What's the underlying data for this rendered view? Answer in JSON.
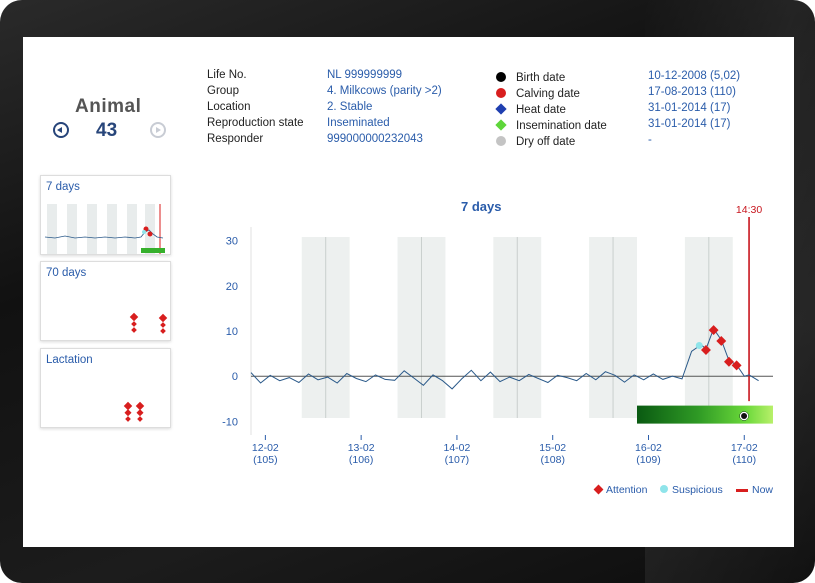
{
  "animal": {
    "title": "Animal",
    "number": "43"
  },
  "info_left": [
    {
      "label": "Life No.",
      "value": "NL 999999999"
    },
    {
      "label": "Group",
      "value": "4. Milkcows (parity >2)"
    },
    {
      "label": "Location",
      "value": "2. Stable"
    },
    {
      "label": "Reproduction state",
      "value": "Inseminated"
    },
    {
      "label": "Responder",
      "value": "999000000232043"
    }
  ],
  "info_right": [
    {
      "label": "Birth date",
      "value": "10-12-2008 (5,02)",
      "color": "#000000",
      "marker": "dot"
    },
    {
      "label": "Calving date",
      "value": "17-08-2013 (110)",
      "color": "#d81e1e",
      "marker": "dot"
    },
    {
      "label": "Heat date",
      "value": "31-01-2014 (17)",
      "color": "#1f3fb0",
      "marker": "diamond"
    },
    {
      "label": "Insemination date",
      "value": "31-01-2014 (17)",
      "color": "#5ed63a",
      "marker": "diamond"
    },
    {
      "label": "Dry off date",
      "value": "-",
      "color": "#c4c4c4",
      "marker": "dot"
    }
  ],
  "thumbnails": [
    {
      "label": "7 days"
    },
    {
      "label": "70 days"
    },
    {
      "label": "Lactation"
    }
  ],
  "chart_legend": {
    "attention": "Attention",
    "suspicious": "Suspicious",
    "now": "Now"
  },
  "now_label": "14:30",
  "chart_data": {
    "type": "line",
    "title": "7 days",
    "xlabel": "",
    "ylabel": "",
    "ylim": [
      -13,
      33
    ],
    "yticks": [
      30,
      20,
      10,
      0,
      -10
    ],
    "x_ticks": [
      {
        "date": "12-02",
        "day": "(105)",
        "x": 0
      },
      {
        "date": "13-02",
        "day": "(106)",
        "x": 1
      },
      {
        "date": "14-02",
        "day": "(107)",
        "x": 2
      },
      {
        "date": "15-02",
        "day": "(108)",
        "x": 3
      },
      {
        "date": "16-02",
        "day": "(109)",
        "x": 4
      },
      {
        "date": "17-02",
        "day": "(110)",
        "x": 5
      }
    ],
    "xlim": [
      -0.15,
      5.3
    ],
    "now_x": 5.05,
    "shaded_bands": [
      [
        0.38,
        0.88
      ],
      [
        1.38,
        1.88
      ],
      [
        2.38,
        2.88
      ],
      [
        3.38,
        3.88
      ],
      [
        4.38,
        4.88
      ]
    ],
    "series": [
      {
        "values": [
          [
            -0.15,
            0.8
          ],
          [
            -0.05,
            -1.5
          ],
          [
            0.05,
            0.2
          ],
          [
            0.15,
            -1.0
          ],
          [
            0.25,
            -0.3
          ],
          [
            0.35,
            -1.4
          ],
          [
            0.45,
            0.5
          ],
          [
            0.55,
            -0.8
          ],
          [
            0.65,
            -0.2
          ],
          [
            0.75,
            -1.5
          ],
          [
            0.85,
            0.6
          ],
          [
            0.95,
            -0.5
          ],
          [
            1.05,
            -1.2
          ],
          [
            1.15,
            0.3
          ],
          [
            1.25,
            -0.7
          ],
          [
            1.35,
            -0.9
          ],
          [
            1.45,
            1.2
          ],
          [
            1.55,
            -0.4
          ],
          [
            1.65,
            -2.0
          ],
          [
            1.75,
            0.3
          ],
          [
            1.85,
            -1.0
          ],
          [
            1.95,
            -2.8
          ],
          [
            2.05,
            -0.6
          ],
          [
            2.15,
            1.3
          ],
          [
            2.25,
            -1.0
          ],
          [
            2.35,
            0.9
          ],
          [
            2.45,
            -1.2
          ],
          [
            2.55,
            -0.2
          ],
          [
            2.65,
            -1.0
          ],
          [
            2.75,
            0.4
          ],
          [
            2.85,
            -0.5
          ],
          [
            2.95,
            -1.4
          ],
          [
            3.05,
            0.2
          ],
          [
            3.15,
            -0.3
          ],
          [
            3.25,
            -1.0
          ],
          [
            3.35,
            0.6
          ],
          [
            3.45,
            -0.8
          ],
          [
            3.55,
            1.0
          ],
          [
            3.65,
            0.2
          ],
          [
            3.75,
            -1.3
          ],
          [
            3.85,
            0.3
          ],
          [
            3.95,
            -0.8
          ],
          [
            4.05,
            0.5
          ],
          [
            4.15,
            -0.7
          ],
          [
            4.25,
            0.0
          ],
          [
            4.35,
            -0.6
          ],
          [
            4.45,
            5.5
          ],
          [
            4.55,
            7.0
          ],
          [
            4.6,
            6.0
          ],
          [
            4.68,
            10.5
          ],
          [
            4.76,
            8.0
          ],
          [
            4.84,
            3.5
          ],
          [
            4.92,
            2.5
          ],
          [
            5.0,
            0.0
          ],
          [
            5.05,
            0.3
          ],
          [
            5.15,
            -1.0
          ]
        ]
      }
    ],
    "attention_points": [
      [
        4.6,
        5.8
      ],
      [
        4.68,
        10.2
      ],
      [
        4.76,
        7.8
      ],
      [
        4.84,
        3.2
      ],
      [
        4.92,
        2.4
      ]
    ],
    "suspicious_points": [
      [
        4.53,
        6.8
      ]
    ],
    "activity_bar": {
      "start_x": 3.88,
      "end_x": 5.3
    }
  }
}
